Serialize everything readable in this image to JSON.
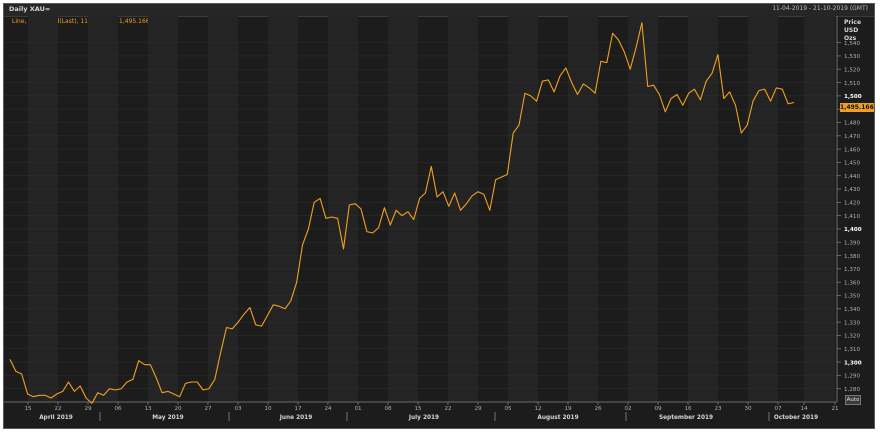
{
  "header": {
    "title": "Daily XAU=",
    "date_range": "11-04-2019 - 21-10-2019 (GMT)"
  },
  "legend": {
    "text": "Line, XAU=, Bid(Last), 11-10-2019, 1,495.1661"
  },
  "axis": {
    "unit_lines": [
      "Price",
      "USD",
      "Ozs"
    ],
    "auto_label": "Auto",
    "current_value_label": "1,495.1661"
  },
  "colors": {
    "background": "#1c1c1c",
    "alt_band": "#242424",
    "line": "#f0a020",
    "text": "#c8c8c8"
  },
  "chart_data": {
    "type": "line",
    "series": [
      {
        "values": [
          1302,
          1293,
          1291,
          1276,
          1274,
          1275,
          1275,
          1273,
          1276,
          1278,
          1285,
          1278,
          1282,
          1273,
          1269,
          1277,
          1275,
          1280,
          1279,
          1280,
          1285,
          1287,
          1301,
          1298,
          1298,
          1288,
          1277,
          1278,
          1276,
          1274,
          1284,
          1285,
          1285,
          1279,
          1280,
          1287,
          1307,
          1326,
          1325,
          1330,
          1336,
          1341,
          1328,
          1327,
          1335,
          1343,
          1342,
          1340,
          1346,
          1360,
          1388,
          1400,
          1420,
          1423,
          1408,
          1409,
          1408,
          1385,
          1418,
          1419,
          1415,
          1398,
          1397,
          1401,
          1416,
          1403,
          1414,
          1410,
          1413,
          1407,
          1423,
          1427,
          1447,
          1424,
          1428,
          1417,
          1427,
          1414,
          1419,
          1425,
          1428,
          1426,
          1414,
          1437,
          1439,
          1441,
          1472,
          1478,
          1502,
          1500,
          1496,
          1511,
          1512,
          1503,
          1515,
          1521,
          1510,
          1501,
          1509,
          1506,
          1502,
          1526,
          1525,
          1547,
          1542,
          1533,
          1520,
          1536,
          1555,
          1507,
          1508,
          1501,
          1488,
          1498,
          1501,
          1493,
          1502,
          1505,
          1497,
          1511,
          1517,
          1531,
          1498,
          1503,
          1493,
          1472,
          1478,
          1496,
          1504,
          1505,
          1496,
          1506,
          1505,
          1494,
          1495
        ]
      }
    ],
    "ylim": [
      1270,
      1560
    ],
    "y_ticks": [
      "1,280",
      "1,290",
      "1,300",
      "1,310",
      "1,320",
      "1,330",
      "1,340",
      "1,350",
      "1,360",
      "1,370",
      "1,380",
      "1,390",
      "1,400",
      "1,410",
      "1,420",
      "1,430",
      "1,440",
      "1,450",
      "1,460",
      "1,470",
      "1,480",
      "1,490",
      "1,500",
      "1,510",
      "1,520",
      "1,530",
      "1,540"
    ],
    "y_ticks_bold": [
      "1,300",
      "1,400",
      "1,500"
    ],
    "x_day_ticks": [
      "15",
      "22",
      "29",
      "06",
      "13",
      "20",
      "27",
      "03",
      "10",
      "17",
      "24",
      "01",
      "08",
      "15",
      "22",
      "29",
      "05",
      "12",
      "19",
      "26",
      "02",
      "09",
      "16",
      "23",
      "30",
      "07",
      "14",
      "21"
    ],
    "x_month_labels": [
      "April 2019",
      "May 2019",
      "June 2019",
      "July 2019",
      "August 2019",
      "September 2019",
      "October 2019"
    ],
    "grid": true
  }
}
